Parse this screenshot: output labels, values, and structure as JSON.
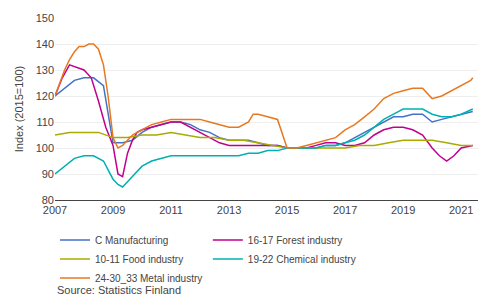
{
  "chart_data": {
    "type": "line",
    "title": "",
    "ylabel": "Index (2015=100)",
    "annotations": [
      "Source: Statistics Finland"
    ],
    "xlim": [
      2007.0,
      2021.58
    ],
    "xticks": [
      2007,
      2009,
      2011,
      2013,
      2015,
      2017,
      2019,
      2021
    ],
    "ylim": [
      80,
      150
    ],
    "yticks": [
      80,
      90,
      100,
      110,
      120,
      130,
      140,
      150
    ],
    "grid": "y",
    "legend": "bottom",
    "series": [
      {
        "name": "C Manufacturing",
        "color": "#4472c4",
        "x": [
          2007.0,
          2007.33,
          2007.67,
          2008.0,
          2008.33,
          2008.67,
          2009.0,
          2009.33,
          2009.67,
          2010.0,
          2010.33,
          2010.67,
          2011.0,
          2011.33,
          2011.67,
          2012.0,
          2012.33,
          2012.67,
          2013.0,
          2013.33,
          2013.67,
          2014.0,
          2014.33,
          2014.67,
          2015.0,
          2015.33,
          2015.67,
          2016.0,
          2016.33,
          2016.67,
          2017.0,
          2017.33,
          2017.67,
          2018.0,
          2018.33,
          2018.67,
          2019.0,
          2019.33,
          2019.67,
          2020.0,
          2020.33,
          2020.67,
          2021.0,
          2021.4
        ],
        "values": [
          120,
          123,
          126,
          127,
          127,
          124,
          102,
          102,
          103,
          106,
          108,
          109,
          110,
          110,
          109,
          107,
          106,
          104,
          103,
          103,
          103,
          102,
          101,
          101,
          100,
          100,
          100,
          100,
          101,
          101,
          102,
          104,
          106,
          108,
          110,
          112,
          112,
          113,
          113,
          110,
          111,
          112,
          113,
          114
        ]
      },
      {
        "name": "16-17 Forest industry",
        "color": "#c00090",
        "x": [
          2007.0,
          2007.25,
          2007.5,
          2007.75,
          2008.0,
          2008.25,
          2008.5,
          2008.75,
          2009.0,
          2009.17,
          2009.33,
          2009.5,
          2009.67,
          2009.83,
          2010.0,
          2010.33,
          2010.67,
          2011.0,
          2011.33,
          2011.67,
          2012.0,
          2012.33,
          2012.67,
          2013.0,
          2013.33,
          2013.67,
          2014.0,
          2014.33,
          2014.67,
          2015.0,
          2015.33,
          2015.67,
          2016.0,
          2016.33,
          2016.67,
          2017.0,
          2017.33,
          2017.67,
          2018.0,
          2018.33,
          2018.67,
          2019.0,
          2019.33,
          2019.67,
          2020.0,
          2020.25,
          2020.5,
          2020.75,
          2021.0,
          2021.4
        ],
        "values": [
          120,
          127,
          132,
          131,
          130,
          127,
          118,
          108,
          101,
          90,
          89,
          98,
          103,
          106,
          107,
          108,
          109,
          110,
          110,
          108,
          106,
          104,
          102,
          101,
          101,
          101,
          101,
          101,
          101,
          100,
          100,
          100,
          101,
          102,
          102,
          101,
          101,
          102,
          105,
          107,
          108,
          108,
          107,
          105,
          100,
          97,
          95,
          97,
          100,
          101
        ]
      },
      {
        "name": "10-11 Food industry",
        "color": "#aaaa00",
        "x": [
          2007.0,
          2007.5,
          2008.0,
          2008.5,
          2009.0,
          2009.5,
          2010.0,
          2010.5,
          2011.0,
          2011.5,
          2012.0,
          2012.5,
          2013.0,
          2013.5,
          2014.0,
          2014.5,
          2015.0,
          2015.5,
          2016.0,
          2016.5,
          2017.0,
          2017.5,
          2018.0,
          2018.5,
          2019.0,
          2019.5,
          2020.0,
          2020.5,
          2021.0,
          2021.4
        ],
        "values": [
          105,
          106,
          106,
          106,
          104,
          104,
          105,
          105,
          106,
          105,
          104,
          104,
          103,
          103,
          102,
          101,
          100,
          100,
          100,
          100,
          100,
          101,
          101,
          102,
          103,
          103,
          103,
          102,
          101,
          101
        ]
      },
      {
        "name": "19-22 Chemical industry",
        "color": "#00b0b0",
        "x": [
          2007.0,
          2007.33,
          2007.67,
          2008.0,
          2008.33,
          2008.67,
          2009.0,
          2009.17,
          2009.33,
          2009.5,
          2009.67,
          2009.83,
          2010.0,
          2010.33,
          2010.67,
          2011.0,
          2011.33,
          2011.67,
          2012.0,
          2012.33,
          2012.67,
          2013.0,
          2013.33,
          2013.67,
          2014.0,
          2014.33,
          2014.67,
          2015.0,
          2015.33,
          2015.67,
          2016.0,
          2016.33,
          2016.67,
          2017.0,
          2017.33,
          2017.67,
          2018.0,
          2018.33,
          2018.67,
          2019.0,
          2019.33,
          2019.67,
          2020.0,
          2020.33,
          2020.67,
          2021.0,
          2021.4
        ],
        "values": [
          90,
          93,
          96,
          97,
          97,
          95,
          88,
          86,
          85,
          87,
          89,
          91,
          93,
          95,
          96,
          97,
          97,
          97,
          97,
          97,
          97,
          97,
          97,
          98,
          98,
          99,
          99,
          100,
          100,
          100,
          100,
          101,
          101,
          102,
          103,
          105,
          108,
          111,
          113,
          115,
          115,
          115,
          113,
          112,
          112,
          113,
          115
        ]
      },
      {
        "name": "24-30_33 Metal industry",
        "color": "#e87820",
        "x": [
          2007.0,
          2007.17,
          2007.33,
          2007.5,
          2007.67,
          2007.83,
          2008.0,
          2008.17,
          2008.33,
          2008.5,
          2008.67,
          2008.83,
          2009.0,
          2009.17,
          2009.33,
          2009.5,
          2009.67,
          2009.83,
          2010.0,
          2010.33,
          2010.67,
          2011.0,
          2011.33,
          2011.67,
          2012.0,
          2012.33,
          2012.67,
          2013.0,
          2013.33,
          2013.67,
          2013.83,
          2014.0,
          2014.33,
          2014.67,
          2015.0,
          2015.33,
          2015.67,
          2016.0,
          2016.33,
          2016.67,
          2017.0,
          2017.33,
          2017.67,
          2018.0,
          2018.33,
          2018.67,
          2019.0,
          2019.33,
          2019.67,
          2020.0,
          2020.33,
          2020.67,
          2021.0,
          2021.17,
          2021.33,
          2021.4
        ],
        "values": [
          120,
          125,
          130,
          134,
          137,
          139,
          139,
          140,
          140,
          138,
          132,
          120,
          104,
          100,
          101,
          103,
          105,
          106,
          107,
          109,
          110,
          111,
          111,
          111,
          111,
          110,
          109,
          108,
          108,
          110,
          113,
          113,
          112,
          111,
          100,
          100,
          101,
          102,
          103,
          104,
          107,
          109,
          112,
          115,
          119,
          121,
          122,
          123,
          123,
          119,
          120,
          122,
          124,
          125,
          126,
          127
        ]
      }
    ]
  }
}
